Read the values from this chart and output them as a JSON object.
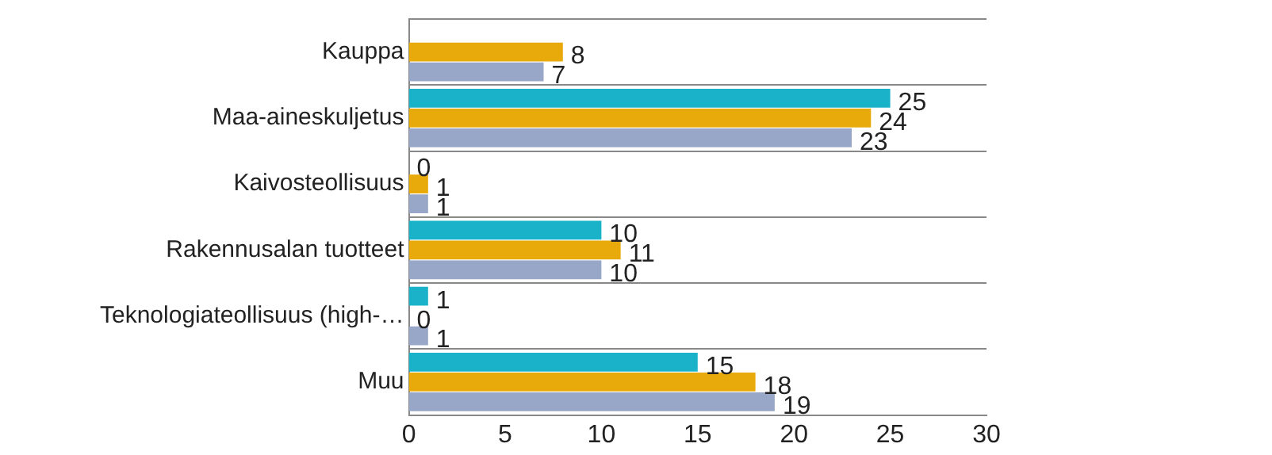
{
  "chart_data": {
    "type": "bar",
    "orientation": "horizontal",
    "categories": [
      "Kauppa",
      "Maa-aineskuljetus",
      "Kaivosteollisuus",
      "Rakennusalan tuotteet",
      "Teknologiateollisuus (high-…",
      "Muu"
    ],
    "series": [
      {
        "color": "#1ab2c8",
        "values": [
          null,
          25,
          0,
          10,
          1,
          15
        ]
      },
      {
        "color": "#e8a90a",
        "values": [
          8,
          24,
          1,
          11,
          0,
          18
        ]
      },
      {
        "color": "#98a7c8",
        "values": [
          7,
          23,
          1,
          10,
          1,
          19
        ]
      }
    ],
    "xlim": [
      0,
      30
    ],
    "xticks": [
      0,
      5,
      10,
      15,
      20,
      25,
      30
    ],
    "grid": "y",
    "legend": false,
    "data_labels": true
  }
}
